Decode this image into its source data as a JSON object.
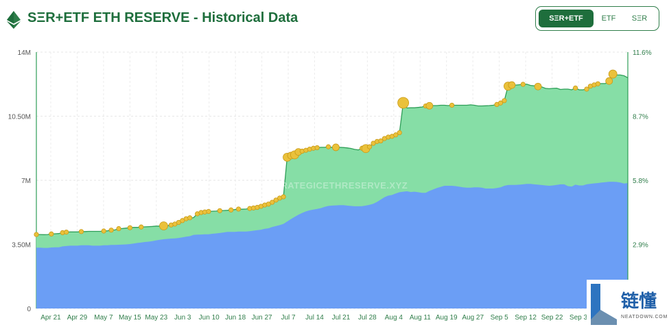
{
  "header": {
    "title": "SΞR+ETF ETH RESERVE - Historical Data",
    "logo_icon": "ethereum-icon"
  },
  "toggle": {
    "options": [
      "SΞR+ETF",
      "ETF",
      "SΞR"
    ],
    "selected": "SΞR+ETF"
  },
  "corner_badge": {
    "text": "链懂",
    "subtext": "NEATDOWN.COM"
  },
  "colors": {
    "brand": "#1e6e3c",
    "ser_area": "#86dea6",
    "ser_line": "#2e9e57",
    "etf_area": "#6b9ef5",
    "bubble": "#eac13b",
    "bubble_stroke": "#c99a18"
  },
  "chart_data": {
    "type": "area",
    "watermark": "STRATEGICETHRESERVE.XYZ",
    "stacked": true,
    "grid": true,
    "categories": [
      "Apr 21",
      "Apr 29",
      "May 7",
      "May 15",
      "May 23",
      "Jun 3",
      "Jun 10",
      "Jun 18",
      "Jun 27",
      "Jul 7",
      "Jul 14",
      "Jul 21",
      "Jul 28",
      "Aug 4",
      "Aug 11",
      "Aug 19",
      "Aug 27",
      "Sep 5",
      "Sep 12",
      "Sep 22",
      "Sep 3"
    ],
    "y_left": {
      "ticks": [
        "0",
        "3.50M",
        "7M",
        "10.50M",
        "14M"
      ],
      "range": [
        0,
        14000000
      ]
    },
    "y_right": {
      "ticks": [
        "2.9%",
        "5.8%",
        "8.7%",
        "11.6%"
      ],
      "range": [
        0,
        11.6
      ]
    },
    "x": [
      0,
      1,
      2,
      3,
      4,
      5,
      6,
      7,
      8,
      9,
      10,
      11,
      12,
      13,
      14,
      15,
      16,
      17,
      18,
      19,
      20,
      21,
      22,
      23,
      24,
      25,
      26,
      27,
      28,
      29,
      30,
      31,
      32,
      33,
      34,
      35,
      36,
      37,
      38,
      39,
      40,
      41,
      42,
      43,
      44,
      45,
      46,
      47,
      48,
      49,
      50,
      51,
      52,
      53,
      54,
      55,
      56,
      57,
      58,
      59,
      60,
      61,
      62,
      63,
      64,
      65,
      66,
      67,
      68,
      69,
      70,
      71,
      72,
      73,
      74,
      75,
      76,
      77,
      78,
      79,
      80,
      81,
      82,
      83,
      84,
      85,
      86,
      87,
      88,
      89,
      90,
      91,
      92,
      93,
      94,
      95,
      96,
      97,
      98,
      99,
      100,
      101,
      102,
      103,
      104,
      105,
      106,
      107,
      108,
      109,
      110,
      111,
      112,
      113,
      114,
      115,
      116,
      117,
      118,
      119,
      120,
      121,
      122,
      123,
      124,
      125,
      126,
      127,
      128,
      129,
      130,
      131,
      132,
      133,
      134,
      135,
      136,
      137,
      138,
      139,
      140,
      141,
      142,
      143,
      144,
      145,
      146,
      147,
      148,
      149,
      150,
      151,
      152,
      153,
      154,
      155,
      156,
      157,
      158
    ],
    "series": [
      {
        "name": "ETF",
        "values": [
          3.32,
          3.32,
          3.31,
          3.31,
          3.33,
          3.34,
          3.34,
          3.39,
          3.41,
          3.43,
          3.43,
          3.43,
          3.45,
          3.45,
          3.45,
          3.43,
          3.43,
          3.43,
          3.45,
          3.45,
          3.47,
          3.47,
          3.48,
          3.49,
          3.5,
          3.52,
          3.55,
          3.58,
          3.6,
          3.63,
          3.65,
          3.68,
          3.72,
          3.75,
          3.78,
          3.8,
          3.82,
          3.83,
          3.85,
          3.88,
          3.92,
          3.95,
          4.02,
          4.03,
          4.04,
          4.05,
          4.05,
          4.08,
          4.1,
          4.12,
          4.15,
          4.18,
          4.18,
          4.18,
          4.2,
          4.2,
          4.2,
          4.22,
          4.25,
          4.28,
          4.3,
          4.35,
          4.38,
          4.45,
          4.5,
          4.55,
          4.62,
          4.75,
          4.88,
          5.0,
          5.12,
          5.22,
          5.3,
          5.36,
          5.4,
          5.44,
          5.48,
          5.55,
          5.6,
          5.62,
          5.63,
          5.64,
          5.64,
          5.62,
          5.6,
          5.58,
          5.58,
          5.59,
          5.62,
          5.66,
          5.72,
          5.82,
          5.95,
          6.08,
          6.16,
          6.2,
          6.28,
          6.35,
          6.38,
          6.4,
          6.36,
          6.38,
          6.35,
          6.32,
          6.32,
          6.42,
          6.5,
          6.58,
          6.64,
          6.7,
          6.7,
          6.7,
          6.68,
          6.65,
          6.62,
          6.6,
          6.6,
          6.62,
          6.62,
          6.6,
          6.55,
          6.55,
          6.55,
          6.58,
          6.62,
          6.7,
          6.74,
          6.75,
          6.75,
          6.76,
          6.78,
          6.8,
          6.8,
          6.78,
          6.76,
          6.74,
          6.72,
          6.7,
          6.72,
          6.75,
          6.78,
          6.78,
          6.68,
          6.66,
          6.76,
          6.72,
          6.72,
          6.78,
          6.81,
          6.83,
          6.85,
          6.88,
          6.9,
          6.92,
          6.92,
          6.91,
          6.88,
          6.82,
          6.85
        ]
      },
      {
        "name": "SΞR",
        "values": [
          0.72,
          0.72,
          0.72,
          0.73,
          0.74,
          0.74,
          0.75,
          0.75,
          0.76,
          0.75,
          0.75,
          0.75,
          0.75,
          0.75,
          0.76,
          0.78,
          0.78,
          0.78,
          0.78,
          0.79,
          0.81,
          0.82,
          0.88,
          0.88,
          0.89,
          0.89,
          0.88,
          0.85,
          0.85,
          0.83,
          0.82,
          0.8,
          0.78,
          0.75,
          0.73,
          0.72,
          0.74,
          0.78,
          0.85,
          0.92,
          0.98,
          1.0,
          0.94,
          1.14,
          1.2,
          1.22,
          1.25,
          1.23,
          1.22,
          1.22,
          1.2,
          1.18,
          1.2,
          1.22,
          1.23,
          1.22,
          1.23,
          1.24,
          1.24,
          1.24,
          1.28,
          1.3,
          1.32,
          1.35,
          1.42,
          1.48,
          1.48,
          3.51,
          3.47,
          3.39,
          3.43,
          3.37,
          3.34,
          3.34,
          3.35,
          3.34,
          3.32,
          3.25,
          3.23,
          3.18,
          3.17,
          3.16,
          3.15,
          3.15,
          3.14,
          3.11,
          3.08,
          3.16,
          3.11,
          3.17,
          3.3,
          3.3,
          3.2,
          3.2,
          3.2,
          3.2,
          3.2,
          3.25,
          4.85,
          4.55,
          4.6,
          4.58,
          4.63,
          4.68,
          4.74,
          4.65,
          4.58,
          4.5,
          4.46,
          4.4,
          4.38,
          4.4,
          4.42,
          4.45,
          4.48,
          4.5,
          4.52,
          4.48,
          4.44,
          4.46,
          4.52,
          4.53,
          4.55,
          4.56,
          4.6,
          4.65,
          5.4,
          5.45,
          5.45,
          5.46,
          5.46,
          5.45,
          5.38,
          5.38,
          5.36,
          5.36,
          5.3,
          5.3,
          5.3,
          5.28,
          5.18,
          5.2,
          5.3,
          5.28,
          5.28,
          5.22,
          5.22,
          5.2,
          5.33,
          5.38,
          5.42,
          5.4,
          5.38,
          5.5,
          5.88,
          5.84,
          5.87,
          5.89,
          5.75
        ]
      }
    ],
    "value_unit": "M ETH",
    "xlabel": "",
    "ylabel": "",
    "legend": "none"
  }
}
